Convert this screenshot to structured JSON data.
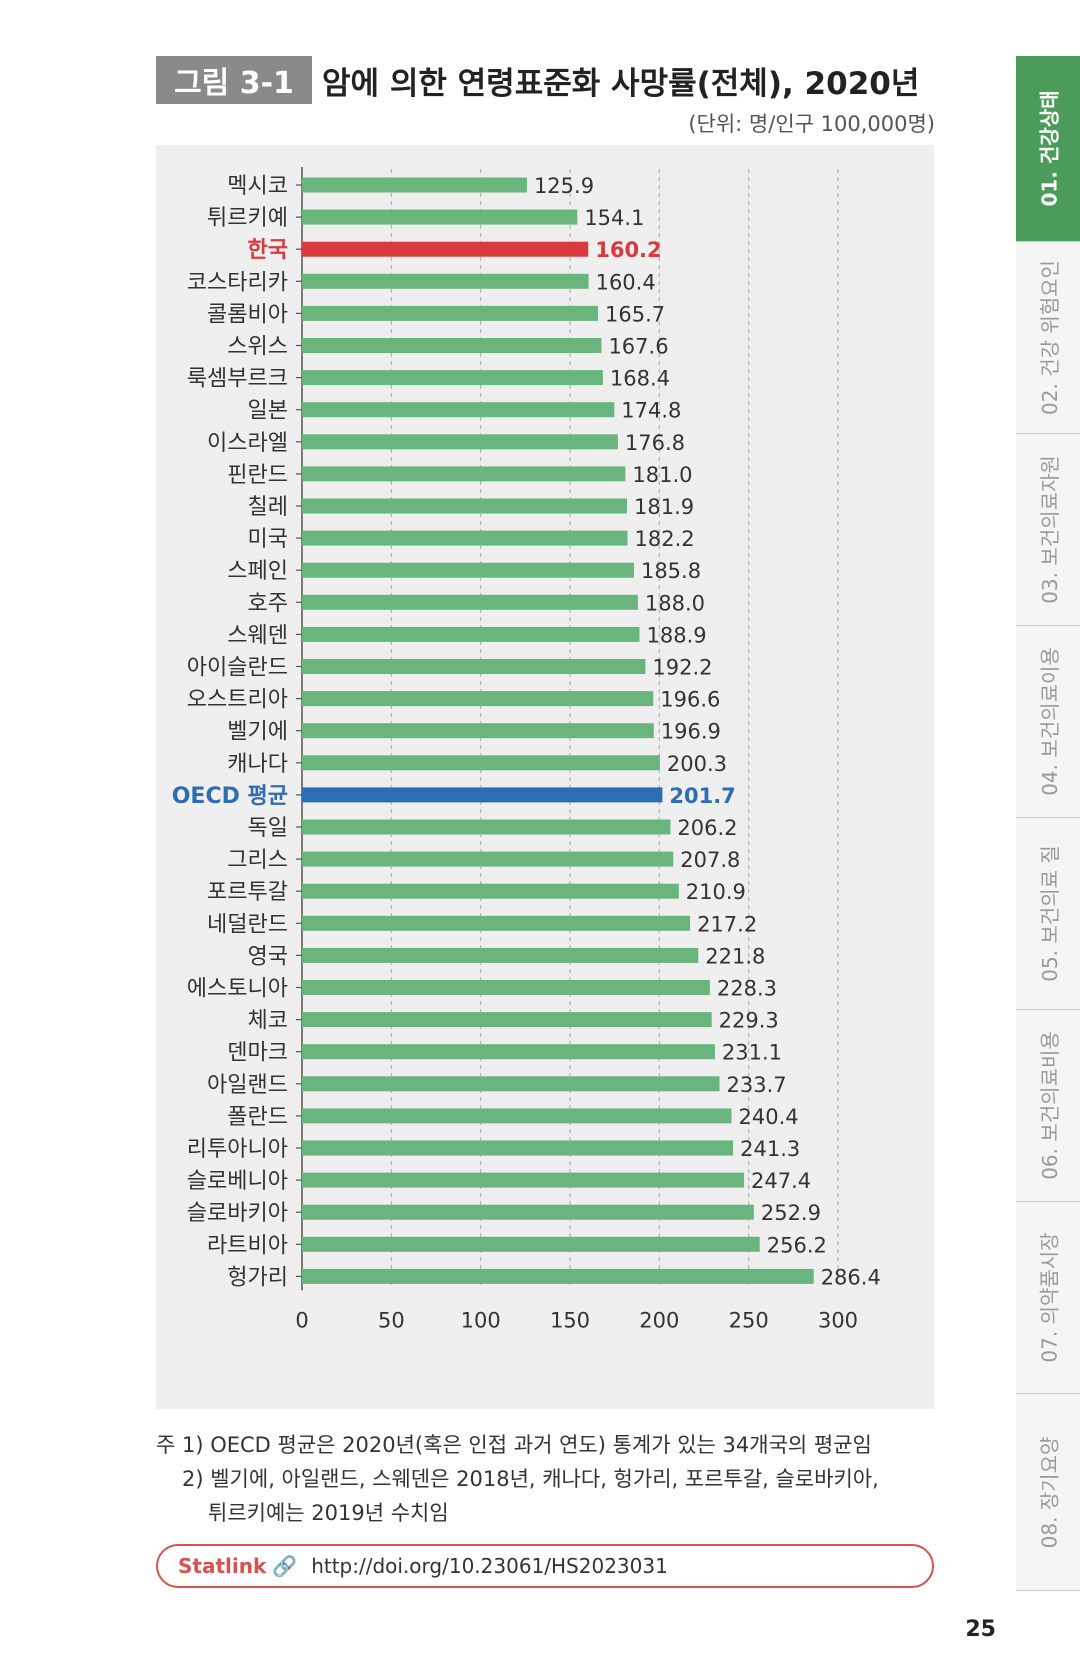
{
  "figure": {
    "label": "그림 3-1",
    "title": "암에 의한 연령표준화 사망률(전체), 2020년",
    "unit": "(단위: 명/인구 100,000명)"
  },
  "chart_data": {
    "type": "bar",
    "orientation": "horizontal",
    "categories": [
      "멕시코",
      "튀르키예",
      "한국",
      "코스타리카",
      "콜롬비아",
      "스위스",
      "룩셈부르크",
      "일본",
      "이스라엘",
      "핀란드",
      "칠레",
      "미국",
      "스페인",
      "호주",
      "스웨덴",
      "아이슬란드",
      "오스트리아",
      "벨기에",
      "캐나다",
      "OECD 평균",
      "독일",
      "그리스",
      "포르투갈",
      "네덜란드",
      "영국",
      "에스토니아",
      "체코",
      "덴마크",
      "아일랜드",
      "폴란드",
      "리투아니아",
      "슬로베니아",
      "슬로바키아",
      "라트비아",
      "헝가리"
    ],
    "values": [
      125.9,
      154.1,
      160.2,
      160.4,
      165.7,
      167.6,
      168.4,
      174.8,
      176.8,
      181.0,
      181.9,
      182.2,
      185.8,
      188.0,
      188.9,
      192.2,
      196.6,
      196.9,
      200.3,
      201.7,
      206.2,
      207.8,
      210.9,
      217.2,
      221.8,
      228.3,
      229.3,
      231.1,
      233.7,
      240.4,
      241.3,
      247.4,
      252.9,
      256.2,
      286.4
    ],
    "value_labels": [
      "125.9",
      "154.1",
      "160.2",
      "160.4",
      "165.7",
      "167.6",
      "168.4",
      "174.8",
      "176.8",
      "181.0",
      "181.9",
      "182.2",
      "185.8",
      "188.0",
      "188.9",
      "192.2",
      "196.6",
      "196.9",
      "200.3",
      "201.7",
      "206.2",
      "207.8",
      "210.9",
      "217.2",
      "221.8",
      "228.3",
      "229.3",
      "231.1",
      "233.7",
      "240.4",
      "241.3",
      "247.4",
      "252.9",
      "256.2",
      "286.4"
    ],
    "highlight": {
      "한국": "#d93a3f",
      "OECD 평균": "#2e6db4"
    },
    "bar_color": "#6ab57e",
    "xlim": [
      0,
      300
    ],
    "xticks": [
      "0",
      "50",
      "100",
      "150",
      "200",
      "250",
      "300"
    ],
    "grid": "vertical dashed",
    "legend": "none"
  },
  "notes": {
    "line1": "주 1) OECD 평균은 2020년(혹은 인접 과거 연도) 통계가 있는 34개국의 평균임",
    "line2": "2) 벨기에, 아일랜드, 스웨덴은 2018년, 캐나다, 헝가리, 포르투갈, 슬로바키아,",
    "line3": "튀르키예는 2019년 수치임"
  },
  "statlink": {
    "brand": "Statlink",
    "icon": "link-icon",
    "url": "http://doi.org/10.23061/HS2023031"
  },
  "side_tabs": [
    {
      "label": "01. 건강상태",
      "active": true
    },
    {
      "label": "02. 건강 위험요인",
      "active": false
    },
    {
      "label": "03. 보건의료자원",
      "active": false
    },
    {
      "label": "04. 보건의료이용",
      "active": false
    },
    {
      "label": "05. 보건의료 질",
      "active": false
    },
    {
      "label": "06. 보건의료비용",
      "active": false
    },
    {
      "label": "07. 의약품시장",
      "active": false
    },
    {
      "label": "08. 장기요양",
      "active": false
    }
  ],
  "page_number": "25"
}
